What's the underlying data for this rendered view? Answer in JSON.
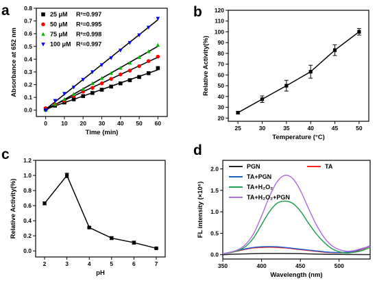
{
  "chart_data": [
    {
      "panel": "a",
      "type": "scatter",
      "xlabel": "Time (min)",
      "ylabel": "Absorbance at 652 nm",
      "xlim": [
        -5,
        65
      ],
      "ylim": [
        -0.05,
        0.8
      ],
      "xticks": [
        0,
        10,
        20,
        30,
        40,
        50,
        60
      ],
      "yticks": [
        0.0,
        0.1,
        0.2,
        0.3,
        0.4,
        0.5,
        0.6,
        0.7,
        0.8
      ],
      "x": [
        0,
        5,
        10,
        15,
        20,
        25,
        30,
        35,
        40,
        45,
        50,
        55,
        60
      ],
      "series": [
        {
          "name": "25 μM",
          "r2": "R²=0.997",
          "marker": "square",
          "color": "#000000",
          "values": [
            0.01,
            0.035,
            0.06,
            0.085,
            0.11,
            0.135,
            0.16,
            0.185,
            0.21,
            0.235,
            0.26,
            0.29,
            0.33
          ]
        },
        {
          "name": "50 μM",
          "r2": "R²=0.995",
          "marker": "circle",
          "color": "#ff0000",
          "values": [
            0.015,
            0.045,
            0.075,
            0.11,
            0.145,
            0.175,
            0.21,
            0.245,
            0.28,
            0.31,
            0.345,
            0.385,
            0.42
          ]
        },
        {
          "name": "75 μM",
          "r2": "R²=0.998",
          "marker": "triangle-up",
          "color": "#00b800",
          "values": [
            0.0,
            0.045,
            0.085,
            0.125,
            0.165,
            0.21,
            0.25,
            0.29,
            0.33,
            0.37,
            0.415,
            0.46,
            0.51
          ]
        },
        {
          "name": "100 μM",
          "r2": "R²=0.997",
          "marker": "triangle-down",
          "color": "#0000ff",
          "values": [
            0.0,
            0.075,
            0.13,
            0.18,
            0.24,
            0.3,
            0.355,
            0.41,
            0.47,
            0.53,
            0.59,
            0.65,
            0.72
          ]
        }
      ]
    },
    {
      "panel": "b",
      "type": "line",
      "xlabel": "Temperature (°C)",
      "ylabel": "Relative Activity(%)",
      "xlim": [
        23,
        52
      ],
      "ylim": [
        17,
        120
      ],
      "xticks": [
        25,
        30,
        35,
        40,
        45,
        50
      ],
      "yticks": [
        20,
        30,
        40,
        50,
        60,
        70,
        80,
        90,
        100,
        110,
        120
      ],
      "x": [
        25,
        30,
        35,
        40,
        45,
        50
      ],
      "values": [
        25,
        37.5,
        50,
        63,
        83,
        100
      ],
      "errors": [
        1,
        3,
        5,
        6,
        5,
        3
      ]
    },
    {
      "panel": "c",
      "type": "line",
      "xlabel": "pH",
      "ylabel": "Relative Activity(%)",
      "xlim": [
        1.6,
        7.4
      ],
      "ylim": [
        -0.08,
        1.2
      ],
      "xticks": [
        2,
        3,
        4,
        5,
        6,
        7
      ],
      "yticks": [
        0.0,
        0.2,
        0.4,
        0.6,
        0.8,
        1.0,
        1.2
      ],
      "x": [
        2,
        3,
        4,
        5,
        6,
        7
      ],
      "values": [
        0.63,
        1.0,
        0.31,
        0.17,
        0.11,
        0.035
      ],
      "errors": [
        0.02,
        0.03,
        0.01,
        0.02,
        0.02,
        0.005
      ]
    },
    {
      "panel": "d",
      "type": "line",
      "xlabel": "Wavelength (nm)",
      "ylabel": "FL intensity (×10⁶)",
      "xlim": [
        350,
        540
      ],
      "ylim": [
        -0.1,
        2.2
      ],
      "xticks": [
        350,
        400,
        450,
        500
      ],
      "yticks": [
        0.0,
        0.5,
        1.0,
        1.5,
        2.0
      ],
      "x": [
        350,
        360,
        370,
        380,
        390,
        400,
        410,
        420,
        430,
        440,
        450,
        460,
        470,
        480,
        490,
        500,
        510,
        520,
        530,
        540
      ],
      "series": [
        {
          "name": "PGN",
          "color": "#222222",
          "values": [
            0.0,
            0.01,
            0.015,
            0.02,
            0.025,
            0.03,
            0.03,
            0.03,
            0.03,
            0.028,
            0.025,
            0.02,
            0.015,
            0.012,
            0.01,
            0.008,
            0.006,
            0.005,
            0.004,
            0.003
          ]
        },
        {
          "name": "TA",
          "color": "#ff2020",
          "values": [
            0.02,
            0.05,
            0.09,
            0.13,
            0.16,
            0.17,
            0.175,
            0.17,
            0.16,
            0.14,
            0.12,
            0.1,
            0.08,
            0.06,
            0.05,
            0.045,
            0.05,
            0.08,
            0.13,
            0.2
          ]
        },
        {
          "name": "TA+PGN",
          "color": "#1f5fc8",
          "values": [
            0.02,
            0.06,
            0.1,
            0.14,
            0.17,
            0.185,
            0.19,
            0.185,
            0.17,
            0.15,
            0.13,
            0.11,
            0.09,
            0.07,
            0.055,
            0.05,
            0.06,
            0.09,
            0.14,
            0.21
          ]
        },
        {
          "name": "TA+H₂O₂",
          "color": "#20a050",
          "values": [
            0.02,
            0.05,
            0.1,
            0.2,
            0.4,
            0.7,
            1.0,
            1.2,
            1.25,
            1.2,
            1.02,
            0.75,
            0.5,
            0.3,
            0.15,
            0.07,
            0.04,
            0.06,
            0.1,
            0.17
          ]
        },
        {
          "name": "TA+H₂O₂+PGN",
          "color": "#b070e0",
          "values": [
            0.02,
            0.06,
            0.12,
            0.25,
            0.5,
            0.9,
            1.35,
            1.7,
            1.85,
            1.78,
            1.5,
            1.1,
            0.72,
            0.42,
            0.22,
            0.12,
            0.08,
            0.1,
            0.15,
            0.2
          ]
        }
      ]
    }
  ],
  "panels": {
    "a": {
      "label": "a"
    },
    "b": {
      "label": "b"
    },
    "c": {
      "label": "c"
    },
    "d": {
      "label": "d"
    }
  }
}
